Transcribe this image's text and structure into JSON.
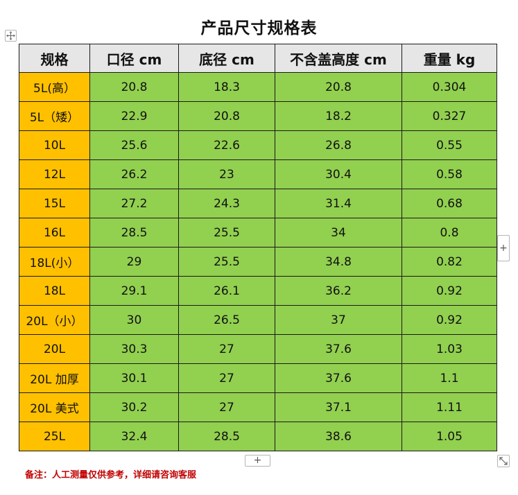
{
  "title": "产品尺寸规格表",
  "table": {
    "headers": [
      "规格",
      "口径 cm",
      "底径 cm",
      "不含盖高度 cm",
      "重量 kg"
    ],
    "rows": [
      [
        "5L(高）",
        "20.8",
        "18.3",
        "20.8",
        "0.304"
      ],
      [
        "5L（矮）",
        "22.9",
        "20.8",
        "18.2",
        "0.327"
      ],
      [
        "10L",
        "25.6",
        "22.6",
        "26.8",
        "0.55"
      ],
      [
        "12L",
        "26.2",
        "23",
        "30.4",
        "0.58"
      ],
      [
        "15L",
        "27.2",
        "24.3",
        "31.4",
        "0.68"
      ],
      [
        "16L",
        "28.5",
        "25.5",
        "34",
        "0.8"
      ],
      [
        "18L(小）",
        "29",
        "25.5",
        "34.8",
        "0.82"
      ],
      [
        "18L",
        "29.1",
        "26.1",
        "36.2",
        "0.92"
      ],
      [
        "20L（小）",
        "30",
        "26.5",
        "37",
        "0.92"
      ],
      [
        "20L",
        "30.3",
        "27",
        "37.6",
        "1.03"
      ],
      [
        "20L 加厚",
        "30.1",
        "27",
        "37.6",
        "1.1"
      ],
      [
        "20L 美式",
        "30.2",
        "27",
        "37.1",
        "1.11"
      ],
      [
        "25L",
        "32.4",
        "28.5",
        "38.6",
        "1.05"
      ]
    ]
  },
  "controls": {
    "add_column_label": "+",
    "add_row_label": "+",
    "move_icon": "move-icon",
    "resize_icon": "resize-icon"
  },
  "note": "备注：人工测量仅供参考，详细请咨询客服",
  "colors": {
    "header_bg": "#e6e6e6",
    "label_bg": "#ffc000",
    "value_bg": "#92d050",
    "note_color": "#c00000"
  }
}
